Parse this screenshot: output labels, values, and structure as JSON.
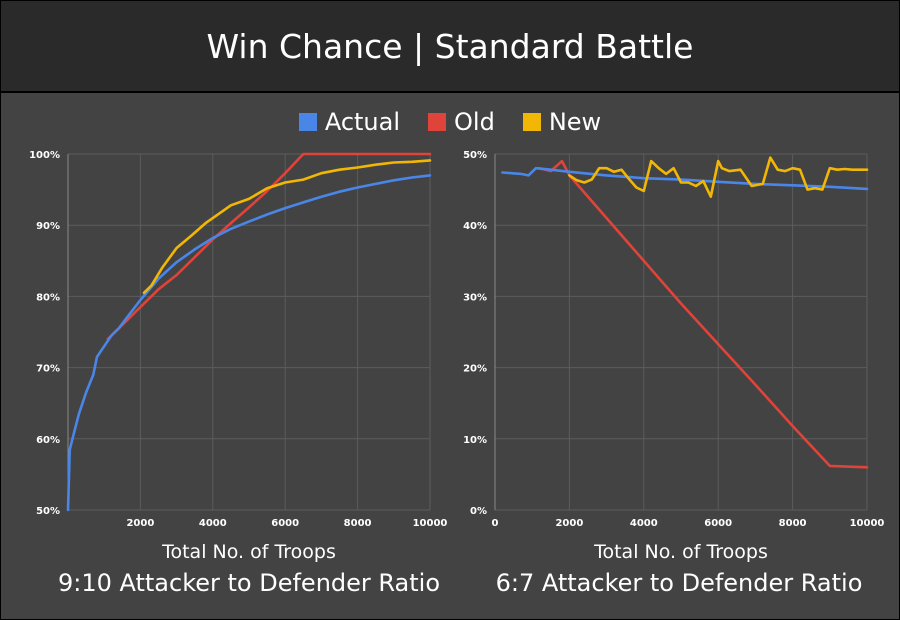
{
  "header": {
    "title": "Win Chance | Standard Battle"
  },
  "legend": [
    {
      "label": "Actual",
      "color": "#4a86e8"
    },
    {
      "label": "Old",
      "color": "#e0433a"
    },
    {
      "label": "New",
      "color": "#f2b705"
    }
  ],
  "chart_data": [
    {
      "type": "line",
      "caption": "9:10 Attacker to Defender Ratio",
      "xlabel": "Total No. of Troops",
      "ylabel": "",
      "xlim": [
        0,
        10000
      ],
      "ylim": [
        50,
        100
      ],
      "xticks": [
        2000,
        4000,
        6000,
        8000,
        10000
      ],
      "yticks": [
        50,
        60,
        70,
        80,
        90,
        100
      ],
      "ytick_labels": [
        "50%",
        "60%",
        "70%",
        "80%",
        "90%",
        "100%"
      ],
      "grid": true,
      "series": [
        {
          "name": "Actual",
          "color": "#4a86e8",
          "x": [
            0,
            50,
            150,
            300,
            500,
            700,
            800,
            1000,
            1200,
            1400,
            1700,
            2000,
            2500,
            3000,
            3500,
            4000,
            4500,
            5000,
            5500,
            6000,
            6500,
            7000,
            7500,
            8000,
            8500,
            9000,
            9500,
            10000
          ],
          "y": [
            50,
            58.5,
            60.5,
            63.5,
            66.5,
            69,
            71.5,
            73,
            74.5,
            75.5,
            77.5,
            79.5,
            82.5,
            84.8,
            86.6,
            88.2,
            89.5,
            90.5,
            91.5,
            92.4,
            93.2,
            94,
            94.7,
            95.3,
            95.8,
            96.3,
            96.7,
            97
          ]
        },
        {
          "name": "Old",
          "color": "#e0433a",
          "x": [
            1100,
            1500,
            2000,
            2500,
            3000,
            3500,
            4000,
            4500,
            5000,
            5500,
            6000,
            6500,
            7000,
            8000,
            9000,
            10000
          ],
          "y": [
            74,
            76,
            78.5,
            81,
            83,
            85.5,
            88,
            90.3,
            92.5,
            94.8,
            97.3,
            100,
            100,
            100,
            100,
            100
          ]
        },
        {
          "name": "New",
          "color": "#f2b705",
          "x": [
            2100,
            2300,
            2600,
            3000,
            3400,
            3800,
            4000,
            4500,
            5000,
            5500,
            6000,
            6500,
            7000,
            7500,
            8000,
            8500,
            9000,
            9500,
            10000
          ],
          "y": [
            80.5,
            81.5,
            84,
            86.8,
            88.5,
            90.3,
            91,
            92.8,
            93.7,
            95.2,
            96,
            96.4,
            97.3,
            97.8,
            98.1,
            98.5,
            98.8,
            98.9,
            99.1
          ]
        }
      ]
    },
    {
      "type": "line",
      "caption": "6:7 Attacker to Defender Ratio",
      "xlabel": "Total No. of Troops",
      "ylabel": "",
      "xlim": [
        0,
        10000
      ],
      "ylim": [
        0,
        50
      ],
      "xticks": [
        0,
        2000,
        4000,
        6000,
        8000,
        10000
      ],
      "yticks": [
        0,
        10,
        20,
        30,
        40,
        50
      ],
      "ytick_labels": [
        "0%",
        "10%",
        "20%",
        "30%",
        "40%",
        "50%"
      ],
      "grid": true,
      "series": [
        {
          "name": "Actual",
          "color": "#4a86e8",
          "x": [
            200,
            700,
            900,
            1100,
            1500,
            2000,
            3000,
            4000,
            5000,
            6000,
            7000,
            8000,
            9000,
            10000
          ],
          "y": [
            47.4,
            47.2,
            47.0,
            48.0,
            47.8,
            47.5,
            47.0,
            46.6,
            46.4,
            46.1,
            45.8,
            45.6,
            45.4,
            45.1
          ]
        },
        {
          "name": "Old",
          "color": "#e0433a",
          "x": [
            1200,
            1500,
            1800,
            2000,
            3000,
            4000,
            5000,
            6000,
            7000,
            8000,
            9000,
            10000
          ],
          "y": [
            48.0,
            47.6,
            49.0,
            47.0,
            41.0,
            35.0,
            29.0,
            23.3,
            17.6,
            11.8,
            6.2,
            6.0
          ]
        },
        {
          "name": "New",
          "color": "#f2b705",
          "x": [
            2000,
            2200,
            2400,
            2600,
            2800,
            3000,
            3200,
            3400,
            3600,
            3800,
            4000,
            4200,
            4400,
            4600,
            4800,
            5000,
            5200,
            5400,
            5600,
            5800,
            6000,
            6100,
            6300,
            6600,
            6900,
            7200,
            7400,
            7600,
            7800,
            8000,
            8200,
            8400,
            8600,
            8800,
            9000,
            9200,
            9400,
            9600,
            10000
          ],
          "y": [
            47.0,
            46.3,
            46.0,
            46.4,
            48.0,
            48.0,
            47.5,
            47.8,
            46.5,
            45.3,
            44.8,
            49.0,
            48.0,
            47.2,
            48.0,
            46.0,
            46.0,
            45.5,
            46.2,
            44.0,
            49.0,
            48.0,
            47.6,
            47.8,
            45.5,
            45.8,
            49.5,
            47.8,
            47.6,
            48.0,
            47.8,
            45.0,
            45.2,
            45.0,
            48.0,
            47.8,
            47.9,
            47.8,
            47.8
          ]
        }
      ]
    }
  ]
}
